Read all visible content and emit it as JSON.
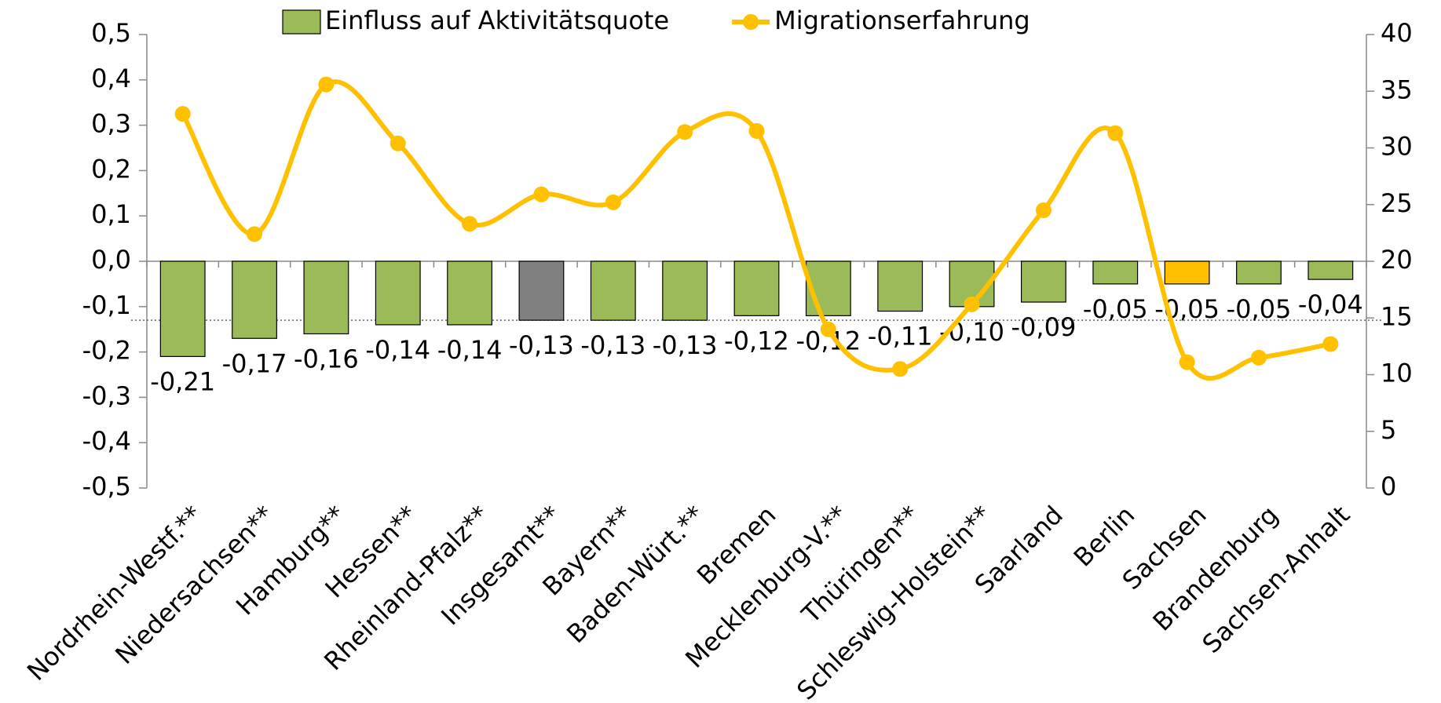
{
  "chart_data": {
    "type": "bar",
    "categories": [
      "Nordrhein-Westf.**",
      "Niedersachsen**",
      "Hamburg**",
      "Hessen**",
      "Rheinland-Pfalz**",
      "Insgesamt**",
      "Bayern**",
      "Baden-Würt.**",
      "Bremen",
      "Mecklenburg-V.**",
      "Thüringen**",
      "Schleswig-Holstein**",
      "Saarland",
      "Berlin",
      "Sachsen",
      "Brandenburg",
      "Sachsen-Anhalt"
    ],
    "series": [
      {
        "name": "Einfluss auf Aktivitätsquote",
        "type": "bar",
        "color": "#9bbb59",
        "colors": [
          "#9bbb59",
          "#9bbb59",
          "#9bbb59",
          "#9bbb59",
          "#9bbb59",
          "#808080",
          "#9bbb59",
          "#9bbb59",
          "#9bbb59",
          "#9bbb59",
          "#9bbb59",
          "#9bbb59",
          "#9bbb59",
          "#9bbb59",
          "#ffc000",
          "#9bbb59",
          "#9bbb59"
        ],
        "values": [
          -0.21,
          -0.17,
          -0.16,
          -0.14,
          -0.14,
          -0.13,
          -0.13,
          -0.13,
          -0.12,
          -0.12,
          -0.11,
          -0.1,
          -0.09,
          -0.05,
          -0.05,
          -0.05,
          -0.04
        ],
        "value_labels": [
          "-0,21",
          "-0,17",
          "-0,16",
          "-0,14",
          "-0,14",
          "-0,13",
          "-0,13",
          "-0,13",
          "-0,12",
          "-0,12",
          "-0,11",
          "-0,10",
          "-0,09",
          "-0,05",
          "-0,05",
          "-0,05",
          "-0,04"
        ]
      },
      {
        "name": "Migrationserfahrung",
        "type": "line",
        "axis": "y2",
        "color": "#ffc000",
        "values": [
          33.0,
          22.4,
          35.6,
          30.4,
          23.3,
          25.9,
          25.2,
          31.4,
          31.5,
          14.0,
          10.5,
          16.2,
          24.5,
          31.3,
          11.1,
          11.5,
          12.7
        ]
      }
    ],
    "ylim": [
      -0.5,
      0.5
    ],
    "yticks": [
      {
        "value": -0.5,
        "label": "-0,5"
      },
      {
        "value": -0.4,
        "label": "-0,4"
      },
      {
        "value": -0.3,
        "label": "-0,3"
      },
      {
        "value": -0.2,
        "label": "-0,2"
      },
      {
        "value": -0.1,
        "label": "-0,1"
      },
      {
        "value": 0,
        "label": "0,0"
      },
      {
        "value": 0.1,
        "label": "0,1"
      },
      {
        "value": 0.2,
        "label": "0,2"
      },
      {
        "value": 0.3,
        "label": "0,3"
      },
      {
        "value": 0.4,
        "label": "0,4"
      },
      {
        "value": 0.5,
        "label": "0,5"
      }
    ],
    "y2lim": [
      0,
      40
    ],
    "y2ticks": [
      0,
      5,
      10,
      15,
      20,
      25,
      30,
      35,
      40
    ],
    "reference_line": -0.13,
    "legend": "top"
  }
}
